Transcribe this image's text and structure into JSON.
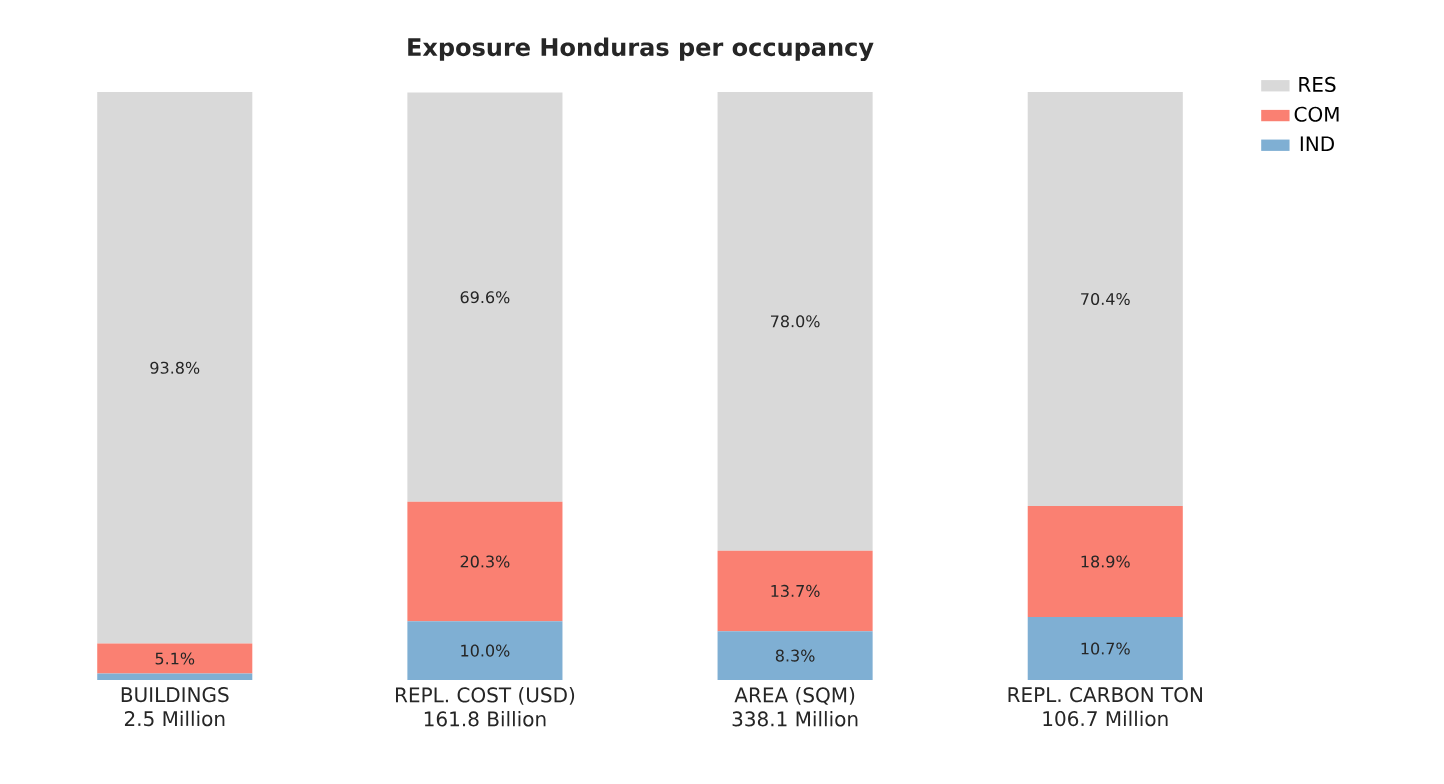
{
  "chart_data": {
    "type": "bar",
    "title": "Exposure Honduras per occupancy",
    "categories": [
      "BUILDINGS\n2.5 Million",
      "REPL. COST (USD)\n161.8 Billion",
      "AREA (SQM)\n338.1 Million",
      "REPL. CARBON TON\n106.7 Million"
    ],
    "stacked": true,
    "tick_labels": "x",
    "legend": "top right",
    "series": [
      {
        "name": "IND",
        "color": "#7fafd3",
        "values": [
          1.1,
          10.0,
          8.3,
          10.7
        ],
        "value_labels": [
          null,
          "10.0%",
          "8.3%",
          "10.7%"
        ]
      },
      {
        "name": "COM",
        "color": "#fa8072",
        "values": [
          5.1,
          20.3,
          13.7,
          18.9
        ],
        "value_labels": [
          "5.1%",
          "20.3%",
          "13.7%",
          "18.9%"
        ]
      },
      {
        "name": "RES",
        "color": "#d9d9d9",
        "values": [
          93.8,
          69.6,
          78.0,
          70.4
        ],
        "value_labels": [
          "93.8%",
          "69.6%",
          "78.0%",
          "70.4%"
        ]
      }
    ]
  }
}
